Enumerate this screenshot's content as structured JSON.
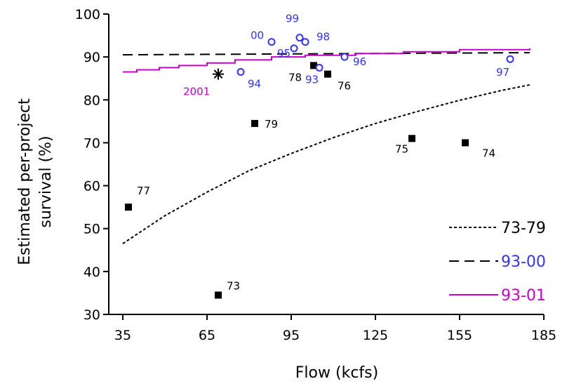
{
  "chart_data": {
    "type": "scatter",
    "xlabel": "Flow (kcfs)",
    "ylabel": [
      "Estimated per-project",
      "survival (%)"
    ],
    "xlim": [
      30,
      185
    ],
    "ylim": [
      30,
      100
    ],
    "xticks": [
      35,
      65,
      95,
      125,
      155,
      185
    ],
    "yticks": [
      30,
      40,
      50,
      60,
      70,
      80,
      90,
      100
    ],
    "grid": false,
    "legend": {
      "position": "bottom-right",
      "entries": [
        {
          "label": "73-79",
          "style": "dotted",
          "color": "#000000"
        },
        {
          "label": "93-00",
          "style": "dashed",
          "color": "#3333ff"
        },
        {
          "label": "93-01",
          "style": "solid",
          "color": "#cc00cc"
        }
      ]
    },
    "series": [
      {
        "marker": "filled-square",
        "color": "#000000",
        "label_color": "#000000",
        "points": [
          {
            "label": "73",
            "x": 69,
            "y": 34.5
          },
          {
            "label": "74",
            "x": 157,
            "y": 70
          },
          {
            "label": "75",
            "x": 138,
            "y": 71
          },
          {
            "label": "76",
            "x": 108,
            "y": 86
          },
          {
            "label": "77",
            "x": 37,
            "y": 55
          },
          {
            "label": "78",
            "x": 103,
            "y": 88
          },
          {
            "label": "79",
            "x": 82,
            "y": 74.5
          }
        ]
      },
      {
        "marker": "open-circle",
        "color": "#3333ff",
        "label_color": "#3333ff",
        "points": [
          {
            "label": "93",
            "x": 105,
            "y": 87.5
          },
          {
            "label": "94",
            "x": 77,
            "y": 86.5
          },
          {
            "label": "95",
            "x": 96,
            "y": 92
          },
          {
            "label": "96",
            "x": 114,
            "y": 90
          },
          {
            "label": "97",
            "x": 173,
            "y": 89.5
          },
          {
            "label": "98",
            "x": 100,
            "y": 93.5
          },
          {
            "label": "99",
            "x": 98,
            "y": 94.5
          },
          {
            "label": "00",
            "x": 88,
            "y": 93.5
          }
        ]
      },
      {
        "marker": "asterisk",
        "color": "#000000",
        "label_color": "#cc00cc",
        "points": [
          {
            "label": "2001",
            "x": 69,
            "y": 86
          }
        ]
      }
    ],
    "lines": [
      {
        "name": "73-79",
        "style": "dotted",
        "color": "#000000",
        "x": [
          35,
          50,
          65,
          80,
          95,
          110,
          125,
          140,
          155,
          170,
          180
        ],
        "y": [
          46.5,
          53,
          58.5,
          63.5,
          67.5,
          71.2,
          74.5,
          77.3,
          79.9,
          82.2,
          83.5
        ]
      },
      {
        "name": "93-00",
        "style": "dashed",
        "color": "#000000",
        "x": [
          35,
          180
        ],
        "y": [
          90.5,
          91
        ]
      },
      {
        "name": "93-01",
        "style": "step",
        "color": "#cc00cc",
        "x": [
          35,
          40,
          48,
          55,
          65,
          75,
          88,
          100,
          118,
          135,
          155,
          180
        ],
        "y": [
          86.5,
          87,
          87.5,
          88,
          88.6,
          89.3,
          90,
          90.4,
          90.8,
          91.2,
          91.7,
          92
        ]
      }
    ]
  }
}
